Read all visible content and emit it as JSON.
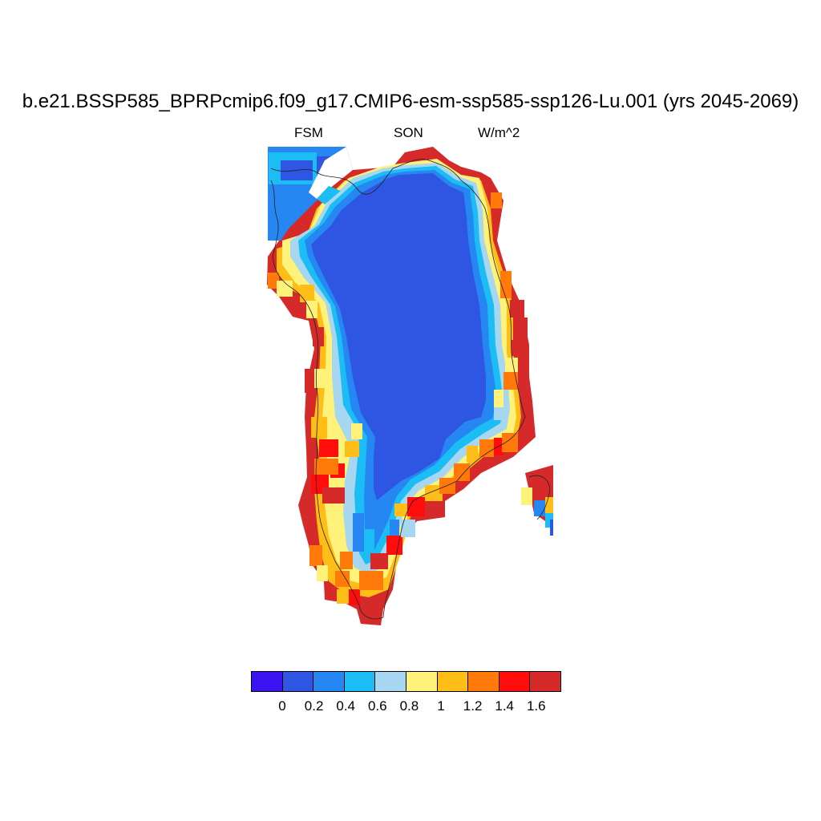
{
  "title": "b.e21.BSSP585_BPRPcmip6.f09_g17.CMIP6-esm-ssp585-ssp126-Lu.001 (yrs 2045-2069)",
  "left_label": "FSM",
  "center_label": "SON",
  "right_label": "W/m^2",
  "colorbar": {
    "colors": [
      "#3b13f0",
      "#2f55e3",
      "#2686f2",
      "#1cbdf5",
      "#a6d6f0",
      "#fff27a",
      "#ffbe17",
      "#ff7a0a",
      "#ff0d0d",
      "#d62a2a"
    ],
    "tick_labels": [
      "0",
      "0.2",
      "0.4",
      "0.6",
      "0.8",
      "1",
      "1.2",
      "1.4",
      "1.6"
    ]
  },
  "map_colors": {
    "interior": "#2f55e3",
    "blue": "#2686f2",
    "cyan": "#1cbdf5",
    "lightblue": "#a6d6f0",
    "yellow": "#fff27a",
    "gold": "#ffbe17",
    "orange": "#ff7a0a",
    "red": "#ff0d0d",
    "darkred": "#d62a2a",
    "violet": "#3b13f0",
    "coast": "#222222"
  }
}
